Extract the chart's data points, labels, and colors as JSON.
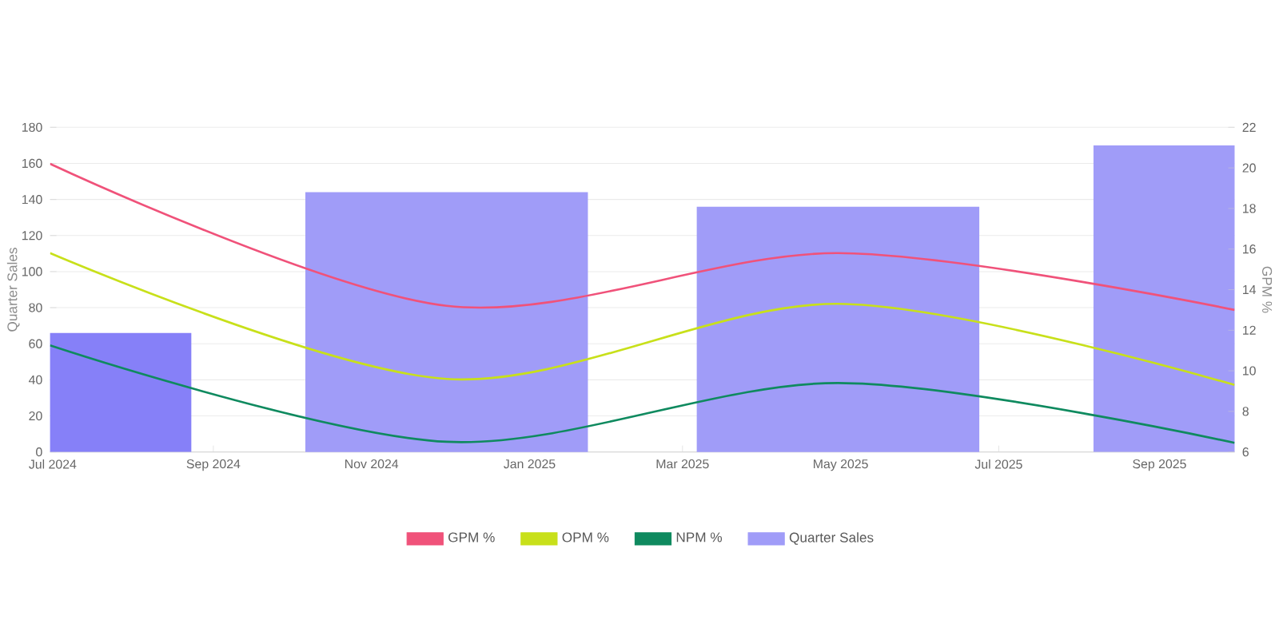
{
  "chart_data": {
    "type": "bar",
    "x": [
      "2024-06-30",
      "2024-11-30",
      "2025-04-30",
      "2025-09-30"
    ],
    "xlim": [
      "2024-06-30",
      "2025-09-30"
    ],
    "xticks": [
      {
        "value": "2024-07-01",
        "label": "Jul 2024"
      },
      {
        "value": "2024-09-01",
        "label": "Sep 2024"
      },
      {
        "value": "2024-11-01",
        "label": "Nov 2024"
      },
      {
        "value": "2025-01-01",
        "label": "Jan 2025"
      },
      {
        "value": "2025-03-01",
        "label": "Mar 2025"
      },
      {
        "value": "2025-05-01",
        "label": "May 2025"
      },
      {
        "value": "2025-07-01",
        "label": "Jul 2025"
      },
      {
        "value": "2025-09-01",
        "label": "Sep 2025"
      }
    ],
    "ylim": [
      0,
      180
    ],
    "yticks": [
      0,
      20,
      40,
      60,
      80,
      100,
      120,
      140,
      160,
      180
    ],
    "y2lim": [
      6,
      22
    ],
    "y2ticks": [
      6,
      8,
      10,
      12,
      14,
      16,
      18,
      20,
      22
    ],
    "ylabel": "Quarter Sales",
    "y2label": "GPM %",
    "grid": "y",
    "legend": "bottom",
    "series": [
      {
        "name": "GPM %",
        "type": "line",
        "axis": "y2",
        "color": "#f0527a",
        "values": [
          20.2,
          13.2,
          15.8,
          13.0
        ]
      },
      {
        "name": "OPM %",
        "type": "line",
        "axis": "y2",
        "color": "#c8e01a",
        "values": [
          15.8,
          9.6,
          13.3,
          9.3
        ]
      },
      {
        "name": "NPM %",
        "type": "line",
        "axis": "y2",
        "color": "#0f8a5f",
        "values": [
          11.25,
          6.5,
          9.4,
          6.45
        ]
      },
      {
        "name": "Quarter Sales",
        "axis": "y",
        "color": "#a09cf8",
        "colors": [
          "#8680f8",
          "#a09cf8",
          "#a09cf8",
          "#a09cf8"
        ],
        "values": [
          66,
          144,
          136,
          170
        ]
      }
    ]
  }
}
